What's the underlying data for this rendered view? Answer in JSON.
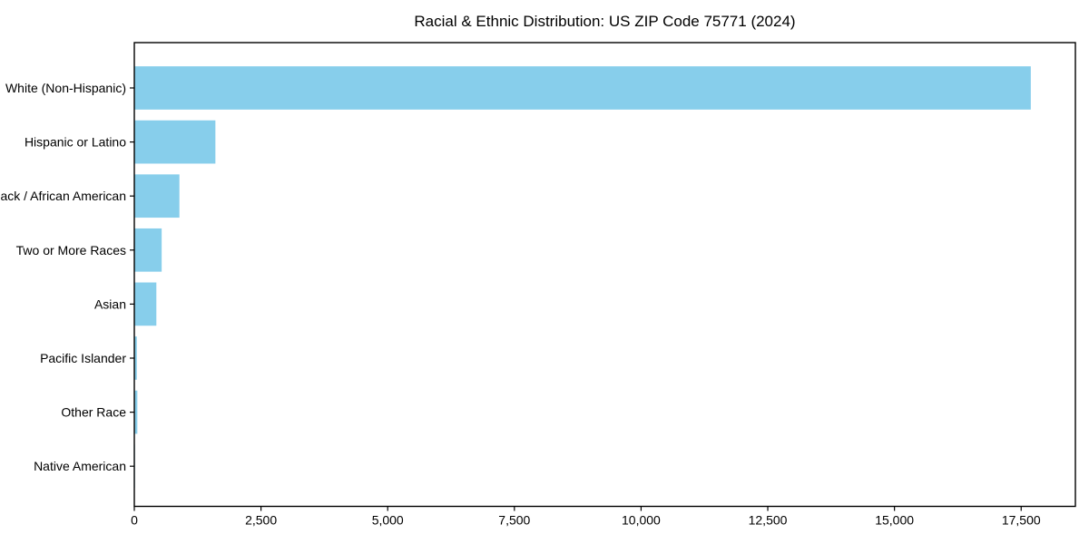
{
  "chart_data": {
    "type": "bar",
    "orientation": "horizontal",
    "title": "Racial & Ethnic Distribution: US ZIP Code 75771 (2024)",
    "categories": [
      "White (Non-Hispanic)",
      "Hispanic or Latino",
      "Black / African American",
      "Two or More Races",
      "Asian",
      "Pacific Islander",
      "Other Race",
      "Native American"
    ],
    "values": [
      17690,
      1600,
      890,
      540,
      435,
      50,
      60,
      12
    ],
    "xlabel": "",
    "ylabel": "",
    "xlim": [
      0,
      18570
    ],
    "xticks": [
      0,
      2500,
      5000,
      7500,
      10000,
      12500,
      15000,
      17500
    ],
    "xtick_labels": [
      "0",
      "2,500",
      "5,000",
      "7,500",
      "10,000",
      "12,500",
      "15,000",
      "17,500"
    ],
    "bar_color": "#87CEEB",
    "axis_color": "#000000",
    "text_color": "#000000",
    "background_color": "#ffffff",
    "grid": false,
    "legend": null
  }
}
